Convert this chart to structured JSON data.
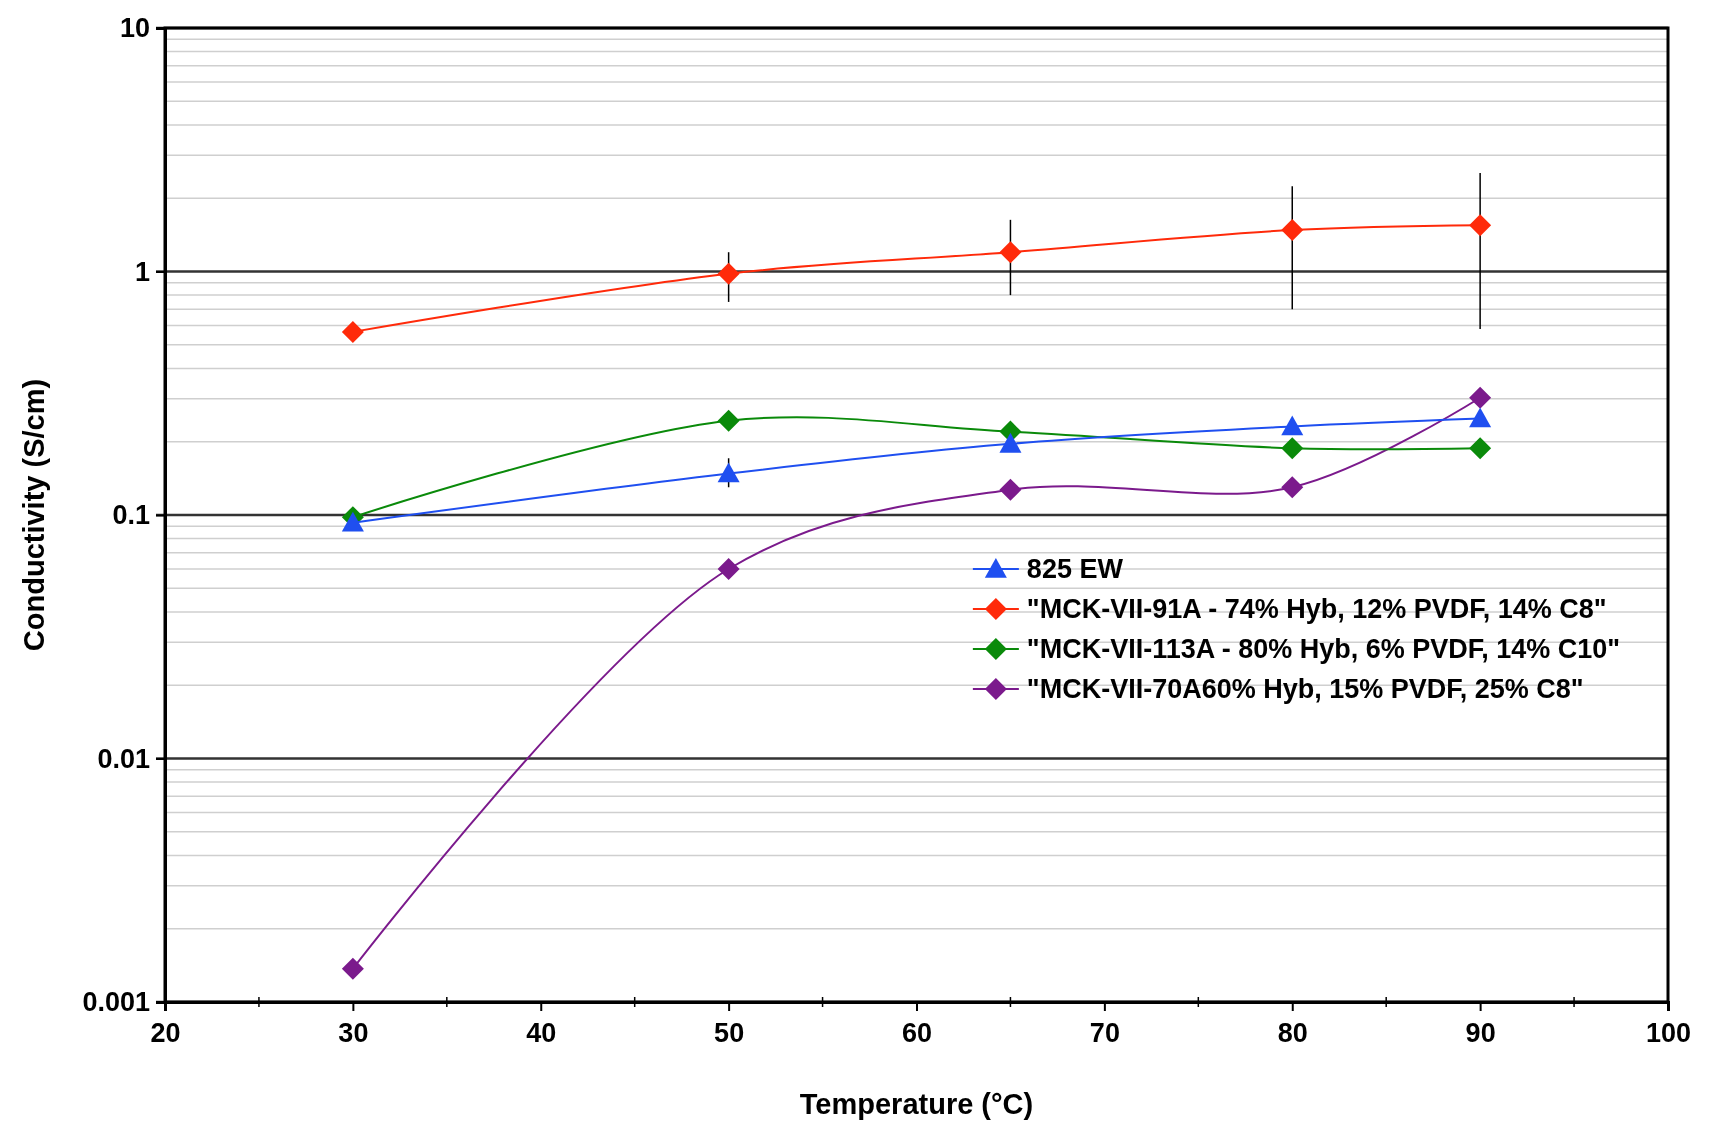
{
  "chart_data": {
    "type": "line",
    "xlabel": "Temperature (°C)",
    "ylabel": "Conductivity (S/cm)",
    "log": "y",
    "grid": "y",
    "legend": "right",
    "x": [
      30,
      50,
      65,
      80,
      90
    ],
    "xlim": [
      20,
      100
    ],
    "xticks": [
      20,
      30,
      40,
      50,
      60,
      70,
      80,
      90,
      100
    ],
    "ylim": [
      0.001,
      10
    ],
    "yticks": [
      0.001,
      0.01,
      0.1,
      1,
      10
    ],
    "series": [
      {
        "name": "825 EW",
        "color": "#1f4ff0",
        "marker": "triangle",
        "values": [
          0.093,
          0.148,
          0.196,
          0.231,
          0.249
        ],
        "errors": [
          null,
          [
            0.13,
            0.171
          ],
          null,
          null,
          null
        ]
      },
      {
        "name": "\"MCK-VII-91A - 74% Hyb, 12% PVDF, 14% C8\"",
        "color": "#ff2a0a",
        "marker": "diamond",
        "values": [
          0.565,
          0.98,
          1.2,
          1.48,
          1.55
        ],
        "errors": [
          null,
          [
            0.75,
            1.2
          ],
          [
            0.8,
            1.63
          ],
          [
            0.7,
            2.24
          ],
          [
            0.58,
            2.54
          ]
        ]
      },
      {
        "name": "\"MCK-VII-113A - 80% Hyb, 6% PVDF, 14% C10\"",
        "color": "#0a8a0a",
        "marker": "diamond",
        "values": [
          0.098,
          0.244,
          0.22,
          0.188,
          0.188
        ]
      },
      {
        "name": "\"MCK-VII-70A60% Hyb, 15% PVDF, 25% C8\"",
        "color": "#7b1a8c",
        "marker": "diamond",
        "values": [
          0.00137,
          0.06,
          0.127,
          0.13,
          0.303
        ]
      }
    ]
  }
}
